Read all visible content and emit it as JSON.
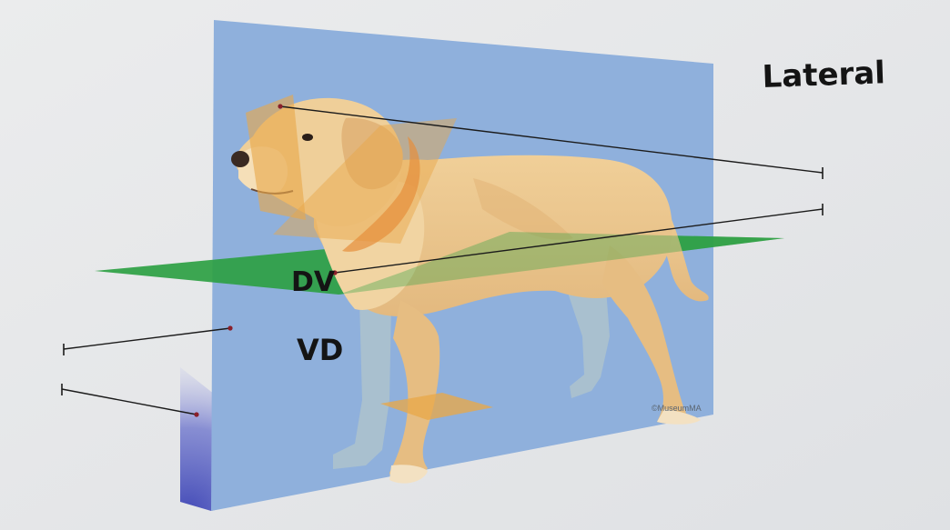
{
  "labels": {
    "lateral": "Lateral",
    "dv": "DV",
    "vd": "VD",
    "credit": "©MuseumMA"
  },
  "colors": {
    "page_background": "#e9eaec",
    "sagittal_plane": "#8fb0dc",
    "dorsal_plane": "#2ea043",
    "transverse_plane": "#e8a84a",
    "dog_coat": "#e9c58f",
    "shadow_plane": "#3d45b8",
    "leader_line": "#1b1b1b",
    "leader_dot": "#8a1f2a",
    "handwriting": "#141414"
  },
  "annotation_blanks": [
    {
      "id": "blank-1",
      "side": "right",
      "target": "transverse plane at head"
    },
    {
      "id": "blank-2",
      "side": "right",
      "target": "dorsal plane"
    },
    {
      "id": "blank-3",
      "side": "left",
      "target": "median plane"
    },
    {
      "id": "blank-4",
      "side": "left",
      "target": "paramedian plane"
    }
  ]
}
